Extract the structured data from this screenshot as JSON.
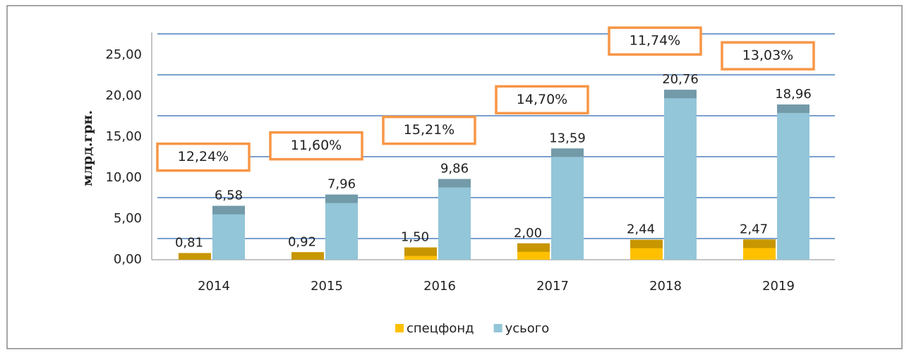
{
  "chart_data": {
    "type": "bar",
    "y_label": "млрд.грн.",
    "categories": [
      "2014",
      "2015",
      "2016",
      "2017",
      "2018",
      "2019"
    ],
    "series": [
      {
        "name": "спецфонд",
        "color": "#ffc000",
        "values": [
          0.81,
          0.92,
          1.5,
          2.0,
          2.44,
          2.47
        ],
        "value_labels": [
          "0,81",
          "0,92",
          "1,50",
          "2,00",
          "2,44",
          "2,47"
        ]
      },
      {
        "name": "усього",
        "color": "#93c6d8",
        "values": [
          6.58,
          7.96,
          9.86,
          13.59,
          20.76,
          18.96
        ],
        "value_labels": [
          "6,58",
          "7,96",
          "9,86",
          "13,59",
          "20,76",
          "18,96"
        ]
      }
    ],
    "annotations": [
      "12,24%",
      "11,60%",
      "15,21%",
      "14,70%",
      "11,74%",
      "13,03%"
    ],
    "ylim": [
      0,
      25
    ],
    "yticks": [
      {
        "value": 0,
        "label": "0,00"
      },
      {
        "value": 5,
        "label": "5,00"
      },
      {
        "value": 10,
        "label": "10,00"
      },
      {
        "value": 15,
        "label": "15,00"
      },
      {
        "value": 20,
        "label": "20,00"
      },
      {
        "value": 25,
        "label": "25,00"
      }
    ],
    "grid": true,
    "legend": "bottom"
  }
}
